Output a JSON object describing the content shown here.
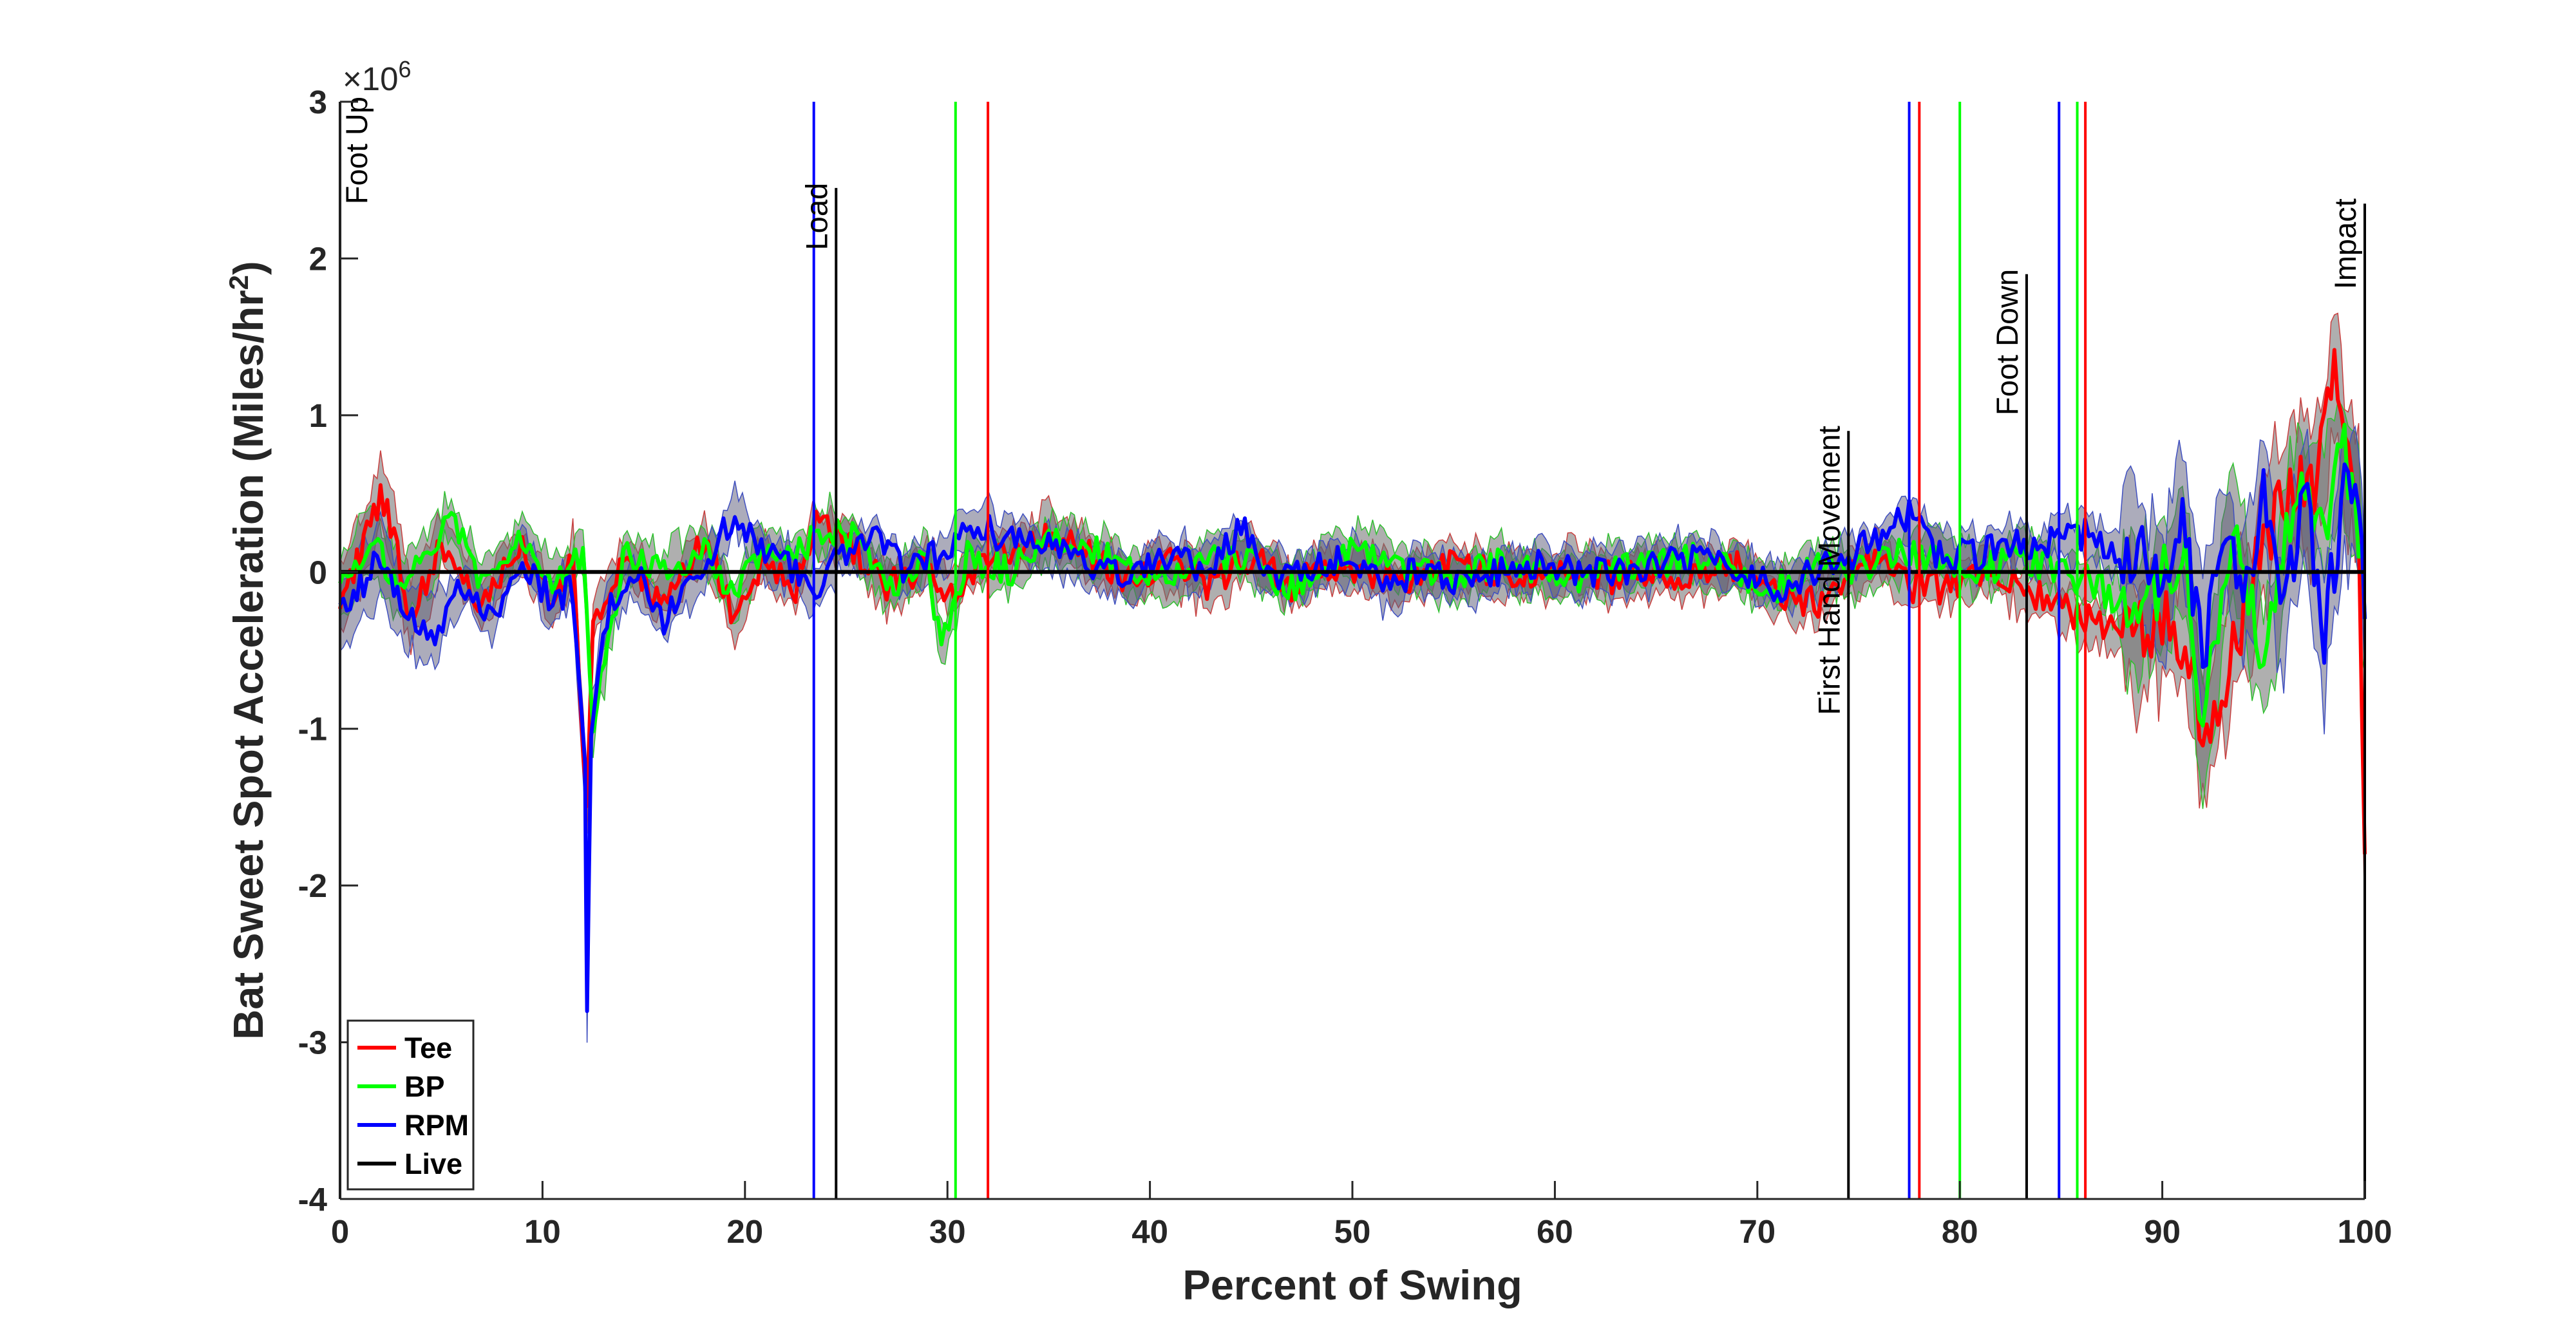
{
  "chart_data": {
    "type": "line",
    "xlabel": "Percent of Swing",
    "ylabel": "Bat Sweet Spot Acceleration (Miles/hr",
    "ylabel_superscript": "2",
    "ylabel_close": ")",
    "y_multiplier": "×10",
    "y_multiplier_exponent": "6",
    "xlim": [
      0,
      100
    ],
    "ylim": [
      -4,
      3
    ],
    "xticks": [
      "0",
      "10",
      "20",
      "30",
      "40",
      "50",
      "60",
      "70",
      "80",
      "90",
      "100"
    ],
    "xtick_values": [
      0,
      10,
      20,
      30,
      40,
      50,
      60,
      70,
      80,
      90,
      100
    ],
    "yticks": [
      "3",
      "2",
      "1",
      "0",
      "-1",
      "-2",
      "-3",
      "-4"
    ],
    "ytick_values": [
      3,
      2,
      1,
      0,
      -1,
      -2,
      -3,
      -4
    ],
    "grid": false,
    "legend_position": "bottom-left",
    "series": [
      {
        "name": "Tee",
        "color": "#ff0000",
        "values_x": [
          0,
          1,
          2,
          2.5,
          3.5,
          5,
          7,
          9,
          10.5,
          11.5,
          12.2,
          12.5,
          14,
          16,
          18,
          19.5,
          21,
          22.5,
          23.5,
          25,
          27,
          29,
          30,
          32,
          34,
          35,
          37,
          39,
          41,
          43,
          45,
          47,
          49,
          51,
          53,
          55,
          57,
          59,
          61,
          63,
          65,
          67,
          69,
          71,
          73,
          74.5,
          76,
          77.5,
          79,
          81,
          83,
          84.5,
          86,
          88,
          90,
          91.5,
          92,
          93.5,
          95,
          96.5,
          97.5,
          98.5,
          99,
          99.7,
          100
        ],
        "values": [
          -0.2,
          0.1,
          0.5,
          0.3,
          -0.3,
          0.2,
          -0.2,
          0.15,
          -0.2,
          0.1,
          -1.5,
          -0.3,
          0.1,
          -0.2,
          0.2,
          -0.3,
          0.1,
          -0.1,
          0.3,
          0.2,
          -0.1,
          0.05,
          -0.15,
          0.1,
          0.2,
          0.25,
          0.1,
          -0.05,
          0.05,
          -0.1,
          0.1,
          -0.1,
          0.05,
          0.0,
          -0.05,
          0.05,
          0.0,
          -0.05,
          0.05,
          -0.05,
          0.0,
          -0.05,
          0.05,
          -0.15,
          -0.2,
          0.0,
          0.1,
          -0.1,
          -0.1,
          0.0,
          -0.1,
          -0.2,
          -0.3,
          -0.4,
          -0.3,
          -0.5,
          -1.1,
          -0.5,
          0.2,
          0.6,
          0.5,
          1.3,
          0.8,
          0.4,
          -1.8
        ]
      },
      {
        "name": "BP",
        "color": "#00ff00",
        "values_x": [
          0,
          1.5,
          3,
          4.5,
          5.5,
          7,
          9,
          10.5,
          12,
          12.5,
          14,
          16,
          18,
          19.5,
          21,
          22.5,
          24,
          25.5,
          27,
          29,
          29.7,
          31,
          33,
          35,
          37,
          39,
          41,
          43,
          45,
          47,
          49,
          51,
          53,
          55,
          57,
          59,
          61,
          63,
          65,
          67,
          69,
          71,
          73,
          75,
          77,
          79,
          81,
          83,
          85,
          87,
          89,
          91,
          92,
          93.5,
          95,
          96.5,
          98,
          99,
          99.7,
          100
        ],
        "values": [
          -0.1,
          0.2,
          -0.1,
          0.1,
          0.4,
          -0.1,
          0.2,
          -0.1,
          0.1,
          -1.0,
          0.1,
          0.0,
          0.15,
          -0.15,
          0.2,
          0.1,
          0.3,
          0.2,
          -0.1,
          0.1,
          -0.5,
          0.1,
          0.0,
          0.2,
          0.15,
          0.0,
          -0.05,
          0.1,
          0.05,
          -0.1,
          0.1,
          0.15,
          0.0,
          -0.05,
          0.05,
          0.0,
          -0.05,
          0.05,
          0.05,
          0.1,
          0.0,
          -0.1,
          0.05,
          0.0,
          0.1,
          0.1,
          0.0,
          0.1,
          0.0,
          -0.1,
          -0.3,
          0.2,
          -0.9,
          0.3,
          -0.6,
          0.5,
          0.3,
          0.8,
          0.3,
          -0.3
        ]
      },
      {
        "name": "RPM",
        "color": "#0000ff",
        "values_x": [
          0,
          1,
          2,
          3,
          4.5,
          6,
          7.5,
          9,
          10.5,
          11.5,
          12.1,
          12.2,
          12.4,
          13,
          14.5,
          16,
          18,
          19.5,
          21,
          22.5,
          23.5,
          25,
          26.5,
          28,
          30,
          31.5,
          33,
          35,
          37,
          39,
          41,
          43,
          44.5,
          46,
          48,
          50,
          51.5,
          53,
          55,
          57,
          59,
          61,
          63,
          65,
          67,
          69,
          71,
          73,
          74.5,
          76,
          77.5,
          79,
          81,
          83,
          84,
          85,
          86,
          87.5,
          89,
          90,
          91,
          92,
          93,
          94,
          95,
          96,
          97,
          98,
          99,
          99.7,
          100
        ],
        "values": [
          -0.3,
          -0.1,
          0.1,
          -0.2,
          -0.4,
          -0.1,
          -0.3,
          0.1,
          -0.2,
          -0.1,
          -1.3,
          -2.8,
          -1.0,
          -0.3,
          0.0,
          -0.3,
          0.0,
          0.4,
          0.1,
          0.0,
          -0.1,
          0.15,
          0.2,
          0.0,
          0.15,
          0.3,
          0.2,
          0.15,
          0.05,
          -0.05,
          0.1,
          0.0,
          0.3,
          -0.05,
          0.0,
          0.1,
          -0.1,
          0.0,
          -0.05,
          0.0,
          0.05,
          0.0,
          0.0,
          0.05,
          0.1,
          0.0,
          -0.1,
          0.0,
          0.1,
          0.2,
          0.35,
          0.1,
          0.1,
          0.2,
          0.15,
          0.2,
          0.25,
          0.15,
          0.1,
          -0.2,
          0.3,
          -0.5,
          0.2,
          -0.2,
          0.5,
          -0.3,
          0.6,
          -0.4,
          0.5,
          0.4,
          -0.3
        ]
      },
      {
        "name": "Live",
        "color": "#000000",
        "values_x": [
          0,
          100
        ],
        "values": [
          0.0,
          0.0
        ]
      }
    ],
    "band_half_width_note": "shaded bands around each series",
    "event_markers": [
      {
        "label": "Foot Up",
        "x": 0.0,
        "color": "#000000",
        "label_top": 3.0
      },
      {
        "label": "Load",
        "x": 24.5,
        "color": "#000000",
        "label_top": 2.45
      },
      {
        "label": "First Hand Movement",
        "x": 74.5,
        "color": "#000000",
        "label_top": 0.9
      },
      {
        "label": "Foot Down",
        "x": 83.3,
        "color": "#000000",
        "label_top": 1.9
      },
      {
        "label": "Impact",
        "x": 100.0,
        "color": "#000000",
        "label_top": 2.35
      }
    ],
    "vertical_lines": [
      {
        "x": 23.4,
        "color": "#0000ff"
      },
      {
        "x": 30.4,
        "color": "#00ff00"
      },
      {
        "x": 32.0,
        "color": "#ff0000"
      },
      {
        "x": 77.5,
        "color": "#0000ff"
      },
      {
        "x": 78.0,
        "color": "#ff0000"
      },
      {
        "x": 80.0,
        "color": "#00ff00"
      },
      {
        "x": 84.9,
        "color": "#0000ff"
      },
      {
        "x": 85.8,
        "color": "#00ff00"
      },
      {
        "x": 86.2,
        "color": "#ff0000"
      }
    ]
  }
}
